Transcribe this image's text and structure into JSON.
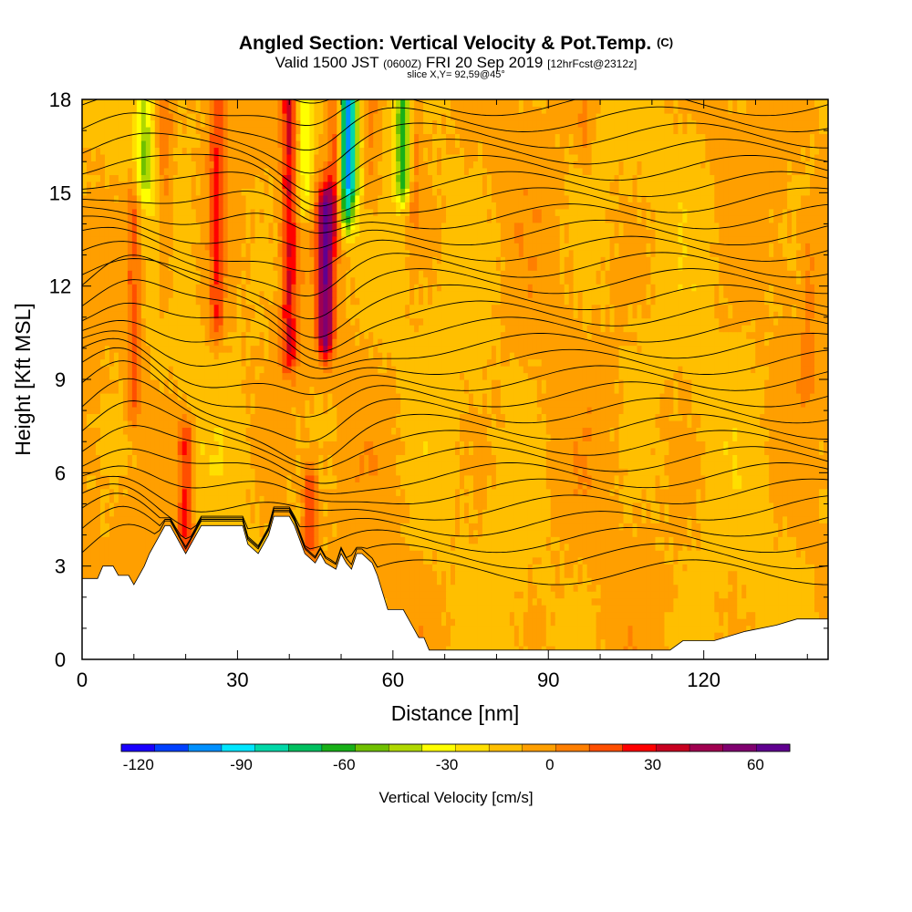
{
  "title": {
    "main": "Angled Section: Vertical Velocity & Pot.Temp.",
    "tag": "(C)",
    "valid_prefix": "Valid 1500 JST",
    "valid_z": "(0600Z)",
    "valid_date": "FRI 20 Sep 2019",
    "valid_fcst": "[12hrFcst@2312z]",
    "slice": "slice X,Y= 92,59@45°"
  },
  "colors": {
    "scale": [
      "#1a00ff",
      "#0040ff",
      "#0090ff",
      "#00e6ff",
      "#00d8a8",
      "#00c060",
      "#18b018",
      "#70c000",
      "#b0d800",
      "#ffff00",
      "#ffdf00",
      "#ffbf00",
      "#ff9f00",
      "#ff7f00",
      "#ff4f00",
      "#ff0000",
      "#c80020",
      "#a00050",
      "#800070",
      "#600090"
    ],
    "terrain": "#ffffff",
    "contour": "#000000"
  },
  "chart_data": {
    "type": "heatmap",
    "title": "Angled Section: Vertical Velocity & Pot.Temp.",
    "xlabel": "Distance [nm]",
    "ylabel": "Height [Kft MSL]",
    "xlim": [
      0,
      144
    ],
    "ylim": [
      0,
      18
    ],
    "xticks": [
      0,
      30,
      60,
      90,
      120
    ],
    "yticks": [
      0,
      3,
      6,
      9,
      12,
      15,
      18
    ],
    "colorbar": {
      "label": "Vertical Velocity [cm/s]",
      "min": -125,
      "max": 70,
      "step": 10,
      "tick_values": [
        -120,
        -90,
        -60,
        -30,
        0,
        30,
        60
      ],
      "tick_labels": [
        "-120",
        "-90",
        "-60",
        "-30",
        "0",
        "30",
        "60"
      ]
    },
    "background_value": -5,
    "updraft_columns": [
      {
        "x": 10,
        "y0": 8.5,
        "y1": 14.5,
        "w": 24
      },
      {
        "x": 16,
        "y0": 12.0,
        "y1": 18.0,
        "w": 18
      },
      {
        "x": 20,
        "y0": 4.0,
        "y1": 7.0,
        "w": 34
      },
      {
        "x": 26,
        "y0": 11.0,
        "y1": 18.0,
        "w": 28
      },
      {
        "x": 40,
        "y0": 10.0,
        "y1": 18.0,
        "w": 38
      },
      {
        "x": 44,
        "y0": 4.0,
        "y1": 5.5,
        "w": 30
      },
      {
        "x": 47,
        "y0": 10.5,
        "y1": 14.5,
        "w": 64
      },
      {
        "x": 49,
        "y0": 14.0,
        "y1": 18.0,
        "w": 30
      },
      {
        "x": 56,
        "y0": 15.0,
        "y1": 18.0,
        "w": 15
      },
      {
        "x": 64,
        "y0": 14.5,
        "y1": 18.0,
        "w": 18
      },
      {
        "x": 97,
        "y0": 16.5,
        "y1": 18.0,
        "w": 10
      },
      {
        "x": 140,
        "y0": 9.0,
        "y1": 13.0,
        "w": 10
      }
    ],
    "downdraft_columns": [
      {
        "x": 12,
        "y0": 15.5,
        "y1": 18.0,
        "w": -35
      },
      {
        "x": 43,
        "y0": 15.0,
        "y1": 18.0,
        "w": -30
      },
      {
        "x": 51,
        "y0": 14.5,
        "y1": 18.0,
        "w": -65
      },
      {
        "x": 52,
        "y0": 15.5,
        "y1": 18.0,
        "w": -40
      },
      {
        "x": 62,
        "y0": 15.5,
        "y1": 18.0,
        "w": -55
      }
    ],
    "terrain_profile": {
      "x": [
        0,
        3,
        4,
        6,
        7,
        9,
        10,
        11,
        12,
        13,
        14,
        15,
        16,
        17,
        18,
        19,
        20,
        21,
        22,
        23,
        26,
        31,
        32,
        34,
        36,
        37,
        40,
        41,
        43,
        45,
        46,
        47,
        49,
        50,
        51,
        52,
        53,
        54,
        56,
        57,
        59,
        60,
        62,
        63,
        64,
        65,
        66,
        67,
        68,
        69,
        70,
        80,
        100,
        105,
        113,
        113.5,
        116,
        122,
        128,
        134,
        138,
        144
      ],
      "height": [
        2.6,
        2.6,
        3.0,
        3.0,
        2.7,
        2.7,
        2.4,
        2.7,
        3.0,
        3.4,
        3.7,
        4.0,
        4.3,
        4.3,
        4.0,
        3.7,
        3.4,
        3.7,
        4.0,
        4.3,
        4.3,
        4.3,
        3.7,
        3.4,
        4.0,
        4.6,
        4.6,
        4.3,
        3.4,
        3.1,
        3.4,
        3.1,
        2.9,
        3.4,
        3.1,
        2.9,
        3.4,
        3.4,
        3.1,
        2.7,
        1.6,
        1.6,
        1.6,
        1.3,
        1.0,
        0.7,
        0.7,
        0.3,
        0.3,
        0.3,
        0.3,
        0.3,
        0.3,
        0.3,
        0.3,
        0.3,
        0.6,
        0.6,
        0.9,
        1.1,
        1.3,
        1.3
      ]
    },
    "isentrope_count": 31
  }
}
